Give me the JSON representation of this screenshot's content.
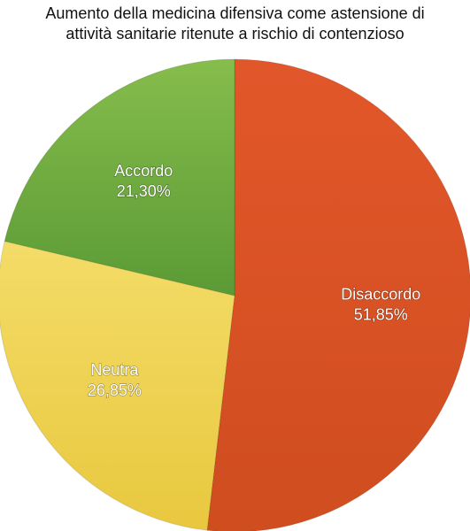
{
  "chart_data": {
    "type": "pie",
    "title_lines": [
      "Aumento della medicina difensiva come astensione di",
      "attività sanitarie ritenute a rischio di contenzioso"
    ],
    "slices": [
      {
        "label": "Disaccordo",
        "value": 51.85,
        "value_label": "51,85%",
        "color": "#cf4d1f",
        "color_light": "#e2572a"
      },
      {
        "label": "Neutra",
        "value": 26.85,
        "value_label": "26,85%",
        "color": "#e9c83e",
        "color_light": "#f3dc68"
      },
      {
        "label": "Accordo",
        "value": 21.3,
        "value_label": "21,30%",
        "color": "#5b9a35",
        "color_light": "#86bd4c"
      }
    ],
    "start_position": "12 o'clock",
    "direction": "clockwise"
  }
}
